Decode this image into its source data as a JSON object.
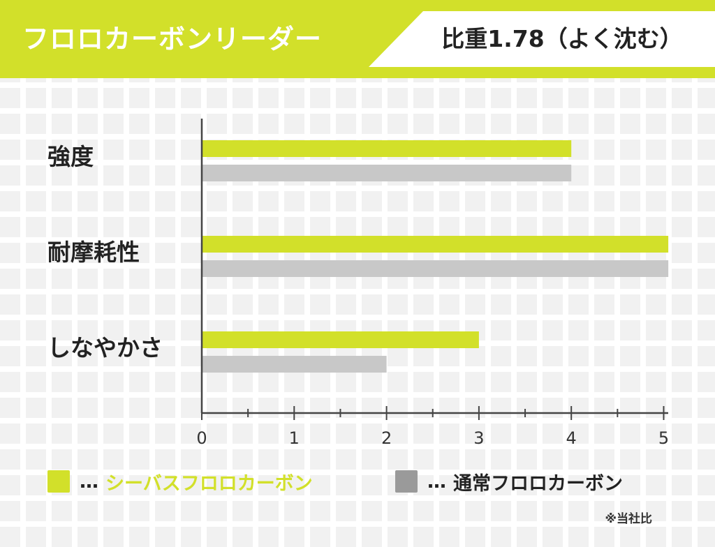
{
  "header": {
    "title": "フロロカーボンリーダー",
    "badge": "比重1.78（よく沈む）"
  },
  "colors": {
    "accent": "#d2e02a",
    "gray": "#c8c8c8",
    "legend_gray": "#9a9a9a"
  },
  "chart_data": {
    "type": "bar",
    "orientation": "horizontal",
    "categories": [
      "強度",
      "耐摩耗性",
      "しなやかさ"
    ],
    "series": [
      {
        "name": "シーバスフロロカーボン",
        "values": [
          4,
          5.05,
          3
        ],
        "color": "#d2e02a"
      },
      {
        "name": "通常フロロカーボン",
        "values": [
          4,
          5.05,
          2
        ],
        "color": "#c8c8c8"
      }
    ],
    "xlim": [
      0,
      5.1
    ],
    "xticks": [
      "0",
      "1",
      "2",
      "3",
      "4",
      "5"
    ],
    "grid": false,
    "legend_position": "bottom"
  },
  "legend": {
    "item1": {
      "prefix": "…",
      "label": "シーバスフロロカーボン"
    },
    "item2": {
      "prefix": "…",
      "label": "通常フロロカーボン"
    }
  },
  "note": "※当社比"
}
